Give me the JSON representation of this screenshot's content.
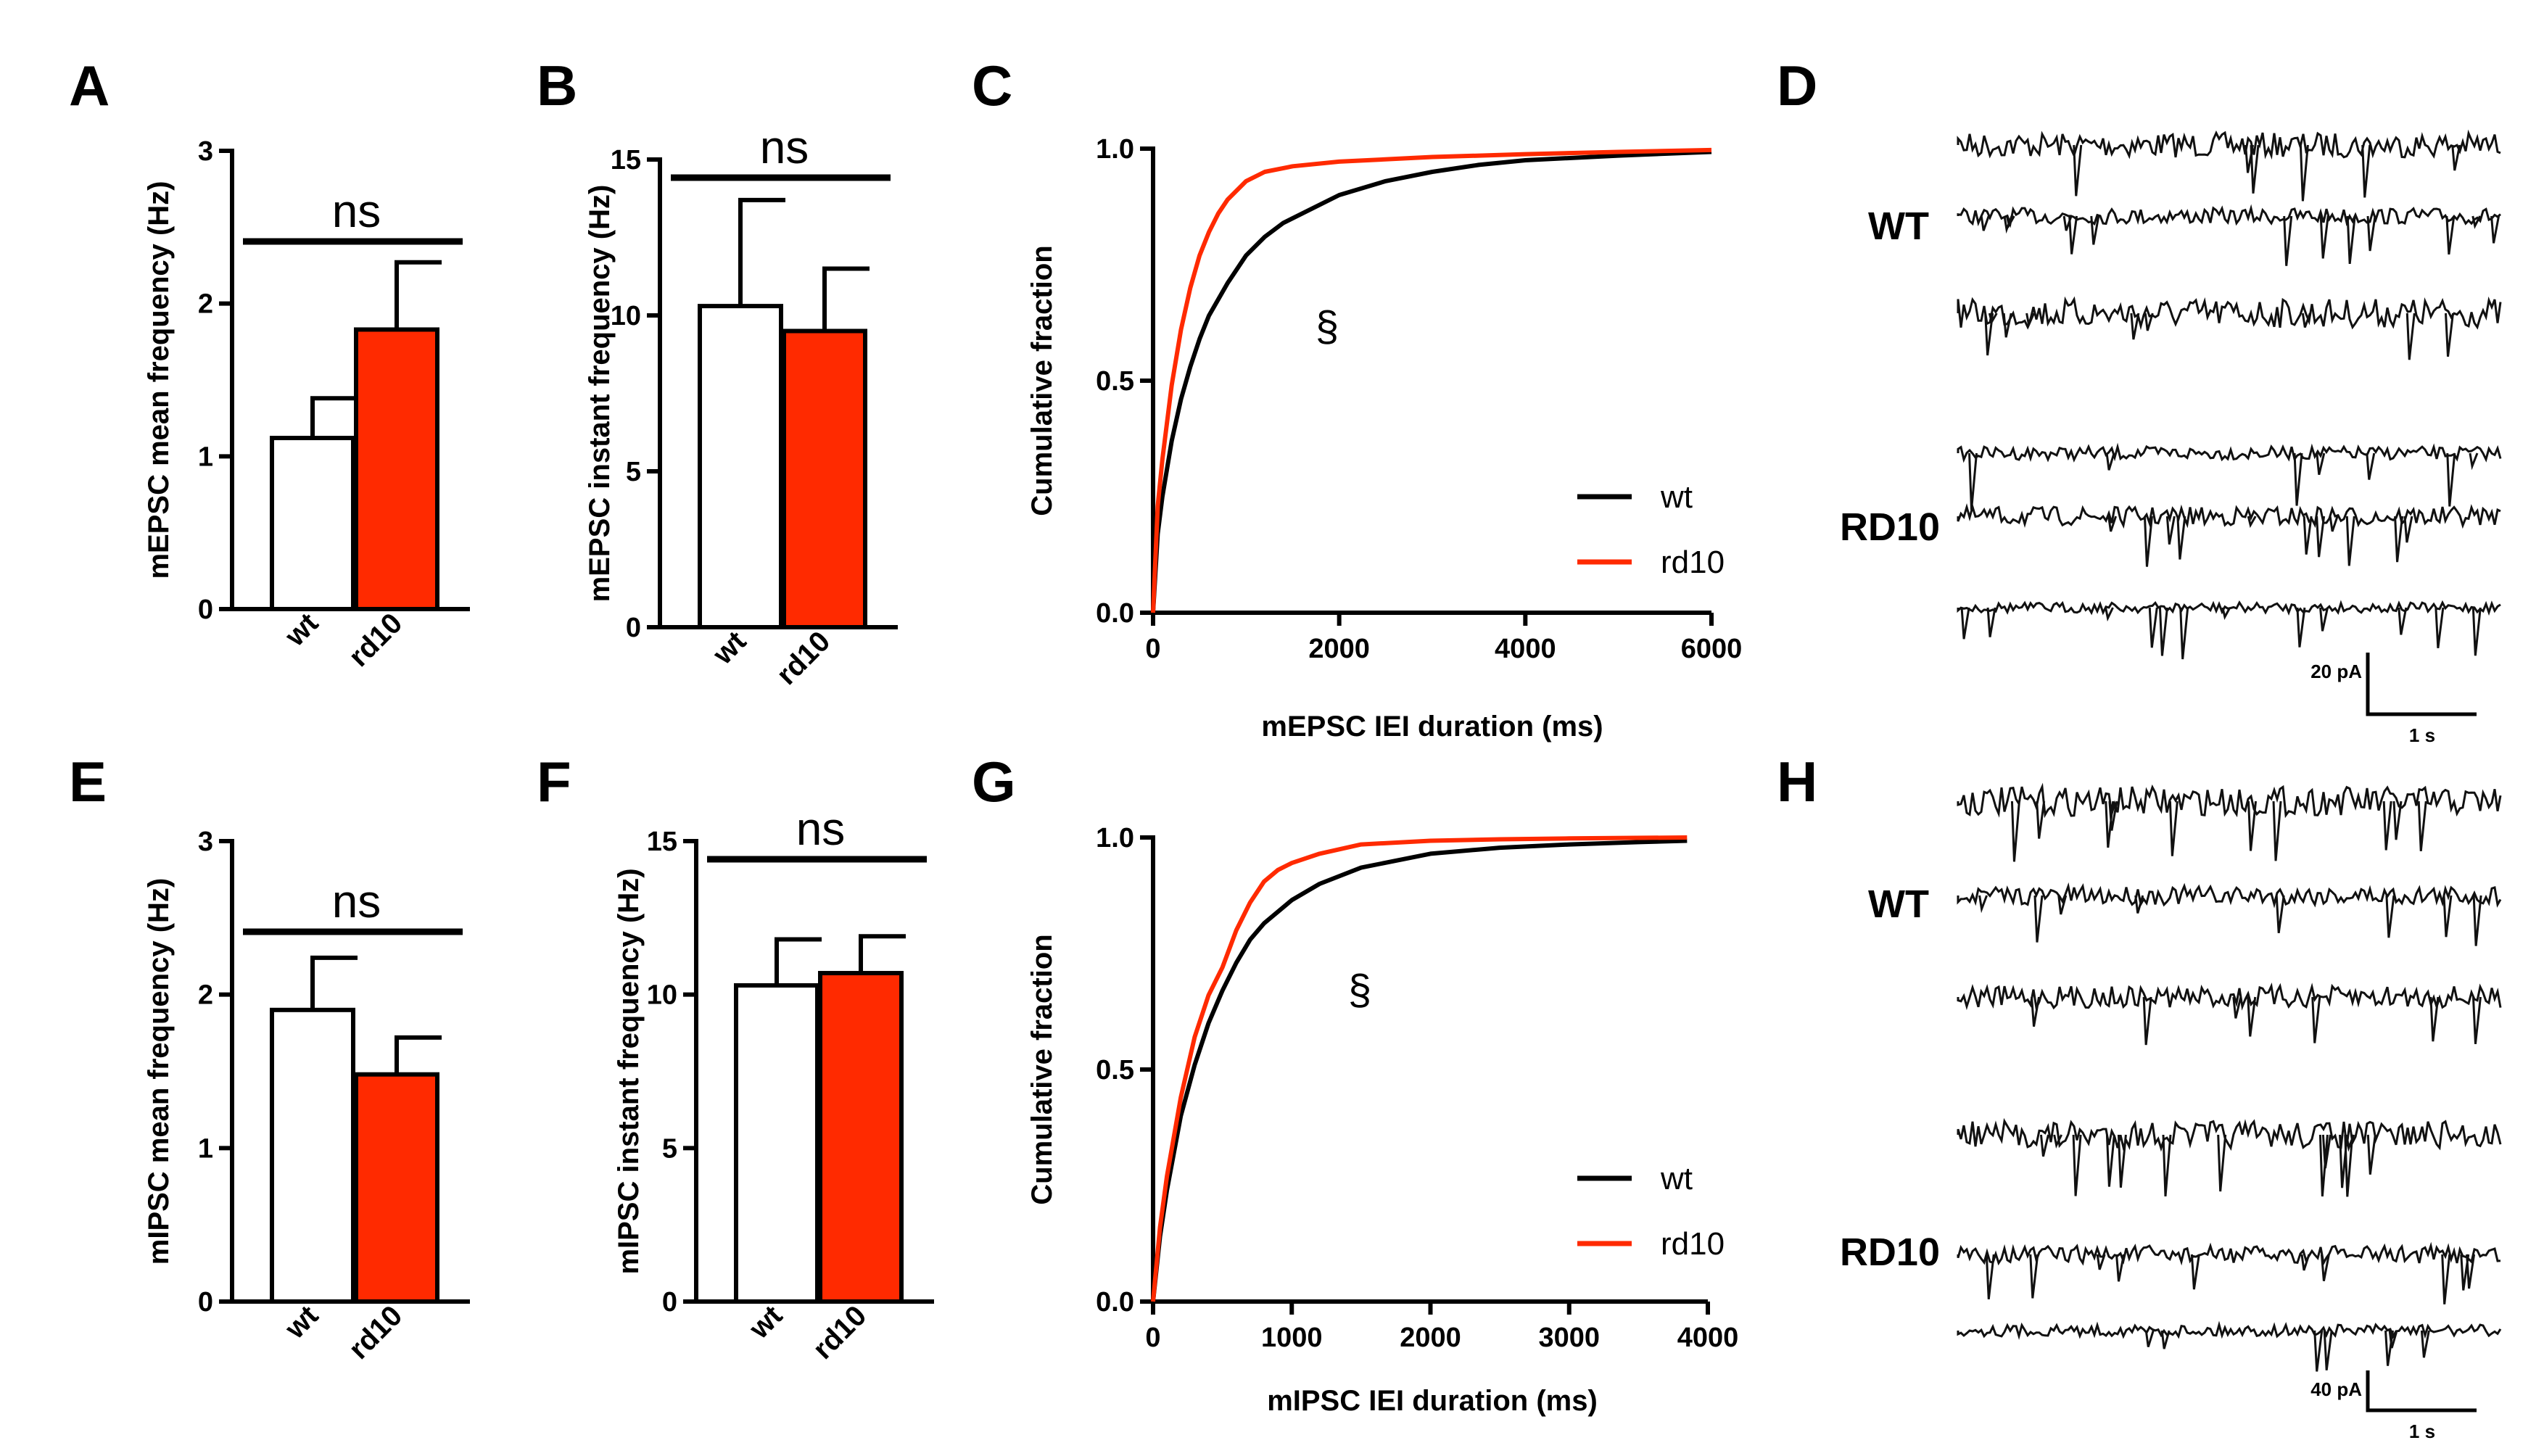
{
  "colors": {
    "wt": "#ffffff",
    "rd10": "#ff2a00",
    "axis": "#000000",
    "wt_line": "#000000",
    "rd10_line": "#ff2a00",
    "trace": "#111111"
  },
  "chart_data": [
    {
      "panel": "A",
      "type": "bar",
      "categories": [
        "wt",
        "rd10"
      ],
      "values": [
        1.12,
        1.83
      ],
      "errors": [
        0.26,
        0.44
      ],
      "ylabel": "mEPSC mean frequency (Hz)",
      "ylim": [
        0,
        3
      ],
      "yticks": [
        "0",
        "1",
        "2",
        "3"
      ],
      "significance": "ns"
    },
    {
      "panel": "B",
      "type": "bar",
      "categories": [
        "wt",
        "rd10"
      ],
      "values": [
        10.3,
        9.5
      ],
      "errors": [
        3.4,
        2.0
      ],
      "ylabel": "mEPSC instant frequency (Hz)",
      "ylim": [
        0,
        15
      ],
      "yticks": [
        "0",
        "5",
        "10",
        "15"
      ],
      "significance": "ns"
    },
    {
      "panel": "C",
      "type": "line",
      "xlabel": "mEPSC IEI duration (ms)",
      "ylabel": "Cumulative fraction",
      "xlim": [
        0,
        6000
      ],
      "ylim": [
        0,
        1
      ],
      "xticks": [
        "0",
        "2000",
        "4000",
        "6000"
      ],
      "yticks": [
        "0.0",
        "0.5",
        "1.0"
      ],
      "annotation": "§",
      "series": [
        {
          "name": "wt",
          "x": [
            0,
            50,
            100,
            200,
            300,
            400,
            500,
            600,
            800,
            1000,
            1200,
            1400,
            1700,
            2000,
            2500,
            3000,
            3500,
            4000,
            5000,
            6000
          ],
          "y": [
            0,
            0.17,
            0.25,
            0.37,
            0.46,
            0.53,
            0.59,
            0.64,
            0.71,
            0.77,
            0.81,
            0.84,
            0.87,
            0.9,
            0.93,
            0.95,
            0.965,
            0.975,
            0.985,
            0.993
          ]
        },
        {
          "name": "rd10",
          "x": [
            0,
            50,
            100,
            200,
            300,
            400,
            500,
            600,
            700,
            800,
            1000,
            1200,
            1500,
            2000,
            3000,
            4000,
            5000,
            6000
          ],
          "y": [
            0,
            0.23,
            0.33,
            0.49,
            0.61,
            0.7,
            0.77,
            0.82,
            0.86,
            0.89,
            0.93,
            0.95,
            0.962,
            0.972,
            0.982,
            0.988,
            0.993,
            0.997
          ]
        }
      ]
    },
    {
      "panel": "E",
      "type": "bar",
      "categories": [
        "wt",
        "rd10"
      ],
      "values": [
        1.9,
        1.48
      ],
      "errors": [
        0.34,
        0.24
      ],
      "ylabel": "mIPSC mean frequency (Hz)",
      "ylim": [
        0,
        3
      ],
      "yticks": [
        "0",
        "1",
        "2",
        "3"
      ],
      "significance": "ns"
    },
    {
      "panel": "F",
      "type": "bar",
      "categories": [
        "wt",
        "rd10"
      ],
      "values": [
        10.3,
        10.7
      ],
      "errors": [
        1.5,
        1.2
      ],
      "ylabel": "mIPSC instant frequency (Hz)",
      "ylim": [
        0,
        15
      ],
      "yticks": [
        "0",
        "5",
        "10",
        "15"
      ],
      "significance": "ns"
    },
    {
      "panel": "G",
      "type": "line",
      "xlabel": "mIPSC IEI duration (ms)",
      "ylabel": "Cumulative fraction",
      "xlim": [
        0,
        4000
      ],
      "ylim": [
        0,
        1
      ],
      "xticks": [
        "0",
        "1000",
        "2000",
        "3000",
        "4000"
      ],
      "yticks": [
        "0.0",
        "0.5",
        "1.0"
      ],
      "annotation": "§",
      "series": [
        {
          "name": "wt",
          "x": [
            0,
            50,
            100,
            200,
            300,
            400,
            500,
            600,
            700,
            800,
            1000,
            1200,
            1500,
            2000,
            2500,
            3000,
            3500,
            3850
          ],
          "y": [
            0,
            0.14,
            0.24,
            0.4,
            0.51,
            0.6,
            0.67,
            0.73,
            0.78,
            0.815,
            0.865,
            0.9,
            0.935,
            0.965,
            0.978,
            0.985,
            0.99,
            0.993
          ]
        },
        {
          "name": "rd10",
          "x": [
            0,
            50,
            100,
            200,
            300,
            400,
            500,
            600,
            700,
            800,
            900,
            1000,
            1200,
            1500,
            2000,
            2500,
            3000,
            3850
          ],
          "y": [
            0,
            0.16,
            0.27,
            0.44,
            0.57,
            0.66,
            0.72,
            0.8,
            0.86,
            0.905,
            0.93,
            0.945,
            0.965,
            0.985,
            0.993,
            0.996,
            0.998,
            1.0
          ]
        }
      ]
    }
  ],
  "panels": {
    "A": {
      "letter": "A"
    },
    "B": {
      "letter": "B"
    },
    "C": {
      "letter": "C"
    },
    "D": {
      "letter": "D"
    },
    "E": {
      "letter": "E"
    },
    "F": {
      "letter": "F"
    },
    "G": {
      "letter": "G"
    },
    "H": {
      "letter": "H"
    }
  },
  "traces_top": {
    "wt_label": "WT",
    "rd10_label": "RD10",
    "scale_amp": "20 pA",
    "scale_time": "1 s"
  },
  "traces_bottom": {
    "wt_label": "WT",
    "rd10_label": "RD10",
    "scale_amp": "40 pA",
    "scale_time": "1 s"
  }
}
